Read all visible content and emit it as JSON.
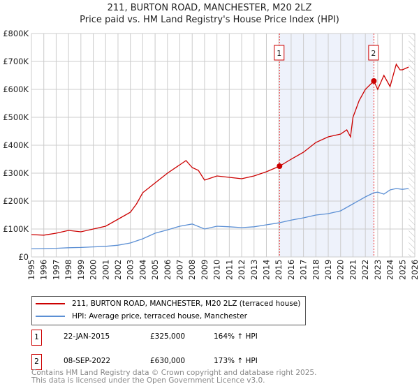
{
  "chart_data": {
    "type": "line",
    "title": "211, BURTON ROAD, MANCHESTER, M20 2LZ",
    "subtitle": "Price paid vs. HM Land Registry's House Price Index (HPI)",
    "xlim": [
      1995,
      2026
    ],
    "ylim": [
      0,
      800000
    ],
    "x_ticks": [
      "1995",
      "1996",
      "1997",
      "1998",
      "1999",
      "2000",
      "2001",
      "2002",
      "2003",
      "2004",
      "2005",
      "2006",
      "2007",
      "2008",
      "2009",
      "2010",
      "2011",
      "2012",
      "2013",
      "2014",
      "2015",
      "2016",
      "2017",
      "2018",
      "2019",
      "2020",
      "2021",
      "2022",
      "2023",
      "2024",
      "2025",
      "2026"
    ],
    "y_ticks": [
      {
        "v": 0,
        "l": "£0"
      },
      {
        "v": 100000,
        "l": "£100K"
      },
      {
        "v": 200000,
        "l": "£200K"
      },
      {
        "v": 300000,
        "l": "£300K"
      },
      {
        "v": 400000,
        "l": "£400K"
      },
      {
        "v": 500000,
        "l": "£500K"
      },
      {
        "v": 600000,
        "l": "£600K"
      },
      {
        "v": 700000,
        "l": "£700K"
      },
      {
        "v": 800000,
        "l": "£800K"
      }
    ],
    "series": [
      {
        "name": "211, BURTON ROAD, MANCHESTER, M20 2LZ (terraced house)",
        "color": "#cc0000",
        "x": [
          1995,
          1996,
          1997,
          1998,
          1999,
          2000,
          2001,
          2002,
          2003,
          2003.5,
          2004,
          2005,
          2006,
          2007,
          2007.5,
          2008,
          2008.5,
          2009,
          2010,
          2011,
          2012,
          2013,
          2014,
          2015.06,
          2016,
          2017,
          2018,
          2019,
          2020,
          2020.5,
          2020.8,
          2021,
          2021.5,
          2022,
          2022.69,
          2023,
          2023.5,
          2024,
          2024.5,
          2024.8,
          2025,
          2025.5
        ],
        "y": [
          80000,
          78000,
          85000,
          95000,
          90000,
          100000,
          110000,
          135000,
          160000,
          190000,
          230000,
          265000,
          300000,
          330000,
          345000,
          320000,
          310000,
          275000,
          290000,
          285000,
          280000,
          290000,
          305000,
          325000,
          350000,
          375000,
          410000,
          430000,
          440000,
          455000,
          430000,
          500000,
          560000,
          600000,
          630000,
          600000,
          650000,
          610000,
          690000,
          670000,
          670000,
          680000
        ]
      },
      {
        "name": "HPI: Average price, terraced house, Manchester",
        "color": "#5b8fd4",
        "x": [
          1995,
          1996,
          1997,
          1998,
          1999,
          2000,
          2001,
          2002,
          2003,
          2004,
          2005,
          2006,
          2007,
          2008,
          2009,
          2010,
          2011,
          2012,
          2013,
          2014,
          2015,
          2016,
          2017,
          2018,
          2019,
          2020,
          2021,
          2022,
          2022.69,
          2023,
          2023.5,
          2024,
          2024.5,
          2025,
          2025.5
        ],
        "y": [
          29000,
          30000,
          31000,
          33000,
          34000,
          36000,
          38000,
          42000,
          50000,
          65000,
          85000,
          97000,
          110000,
          118000,
          100000,
          110000,
          108000,
          105000,
          108000,
          115000,
          122000,
          132000,
          140000,
          150000,
          155000,
          165000,
          190000,
          215000,
          230000,
          232000,
          225000,
          240000,
          245000,
          242000,
          245000
        ]
      }
    ],
    "sales": [
      {
        "label": "1",
        "x": 2015.06,
        "y": 325000,
        "date": "22-JAN-2015",
        "price": "£325,000",
        "hpi": "164% ↑ HPI"
      },
      {
        "label": "2",
        "x": 2022.69,
        "y": 630000,
        "date": "08-SEP-2022",
        "price": "£630,000",
        "hpi": "173% ↑ HPI"
      }
    ],
    "shaded_range": [
      2015.06,
      2022.69
    ],
    "hatched_from": 2025.5,
    "legend": [
      "211, BURTON ROAD, MANCHESTER, M20 2LZ (terraced house)",
      "HPI: Average price, terraced house, Manchester"
    ],
    "footer": [
      "Contains HM Land Registry data © Crown copyright and database right 2025.",
      "This data is licensed under the Open Government Licence v3.0."
    ]
  }
}
